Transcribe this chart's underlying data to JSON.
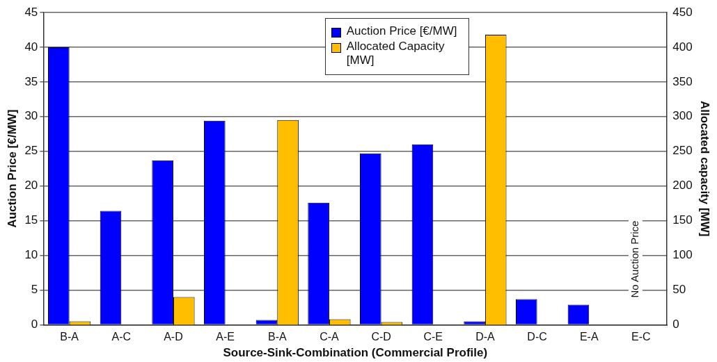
{
  "chart_data": {
    "type": "bar",
    "xlabel": "Source-Sink-Combination (Commercial Profile)",
    "ylabel": "Auction Price [€/MW]",
    "y2label": "Allocated capacity [MW]",
    "categories": [
      "B-A",
      "A-C",
      "A-D",
      "A-E",
      "B-A",
      "C-A",
      "C-D",
      "C-E",
      "D-A",
      "D-C",
      "E-A",
      "E-C"
    ],
    "series": [
      {
        "name": "Auction Price [€/MW]",
        "color": "#0000ff",
        "values": [
          40,
          16.4,
          23.7,
          29.4,
          0.7,
          17.6,
          24.7,
          26.0,
          0.5,
          3.7,
          2.9,
          null
        ]
      },
      {
        "name": "Allocated Capacity [MW]",
        "color": "#ffbf00",
        "axis": "y2",
        "values": [
          5,
          null,
          40,
          null,
          295,
          8,
          4,
          null,
          418,
          null,
          null,
          null
        ]
      }
    ],
    "ylim": [
      0,
      45
    ],
    "yticks": [
      0,
      5,
      10,
      15,
      20,
      25,
      30,
      35,
      40,
      45
    ],
    "y2lim": [
      0,
      450
    ],
    "y2ticks": [
      0,
      50,
      100,
      150,
      200,
      250,
      300,
      350,
      400,
      450
    ],
    "grid": "y",
    "legend": "top",
    "annotations": [
      "No Auction Price"
    ]
  }
}
